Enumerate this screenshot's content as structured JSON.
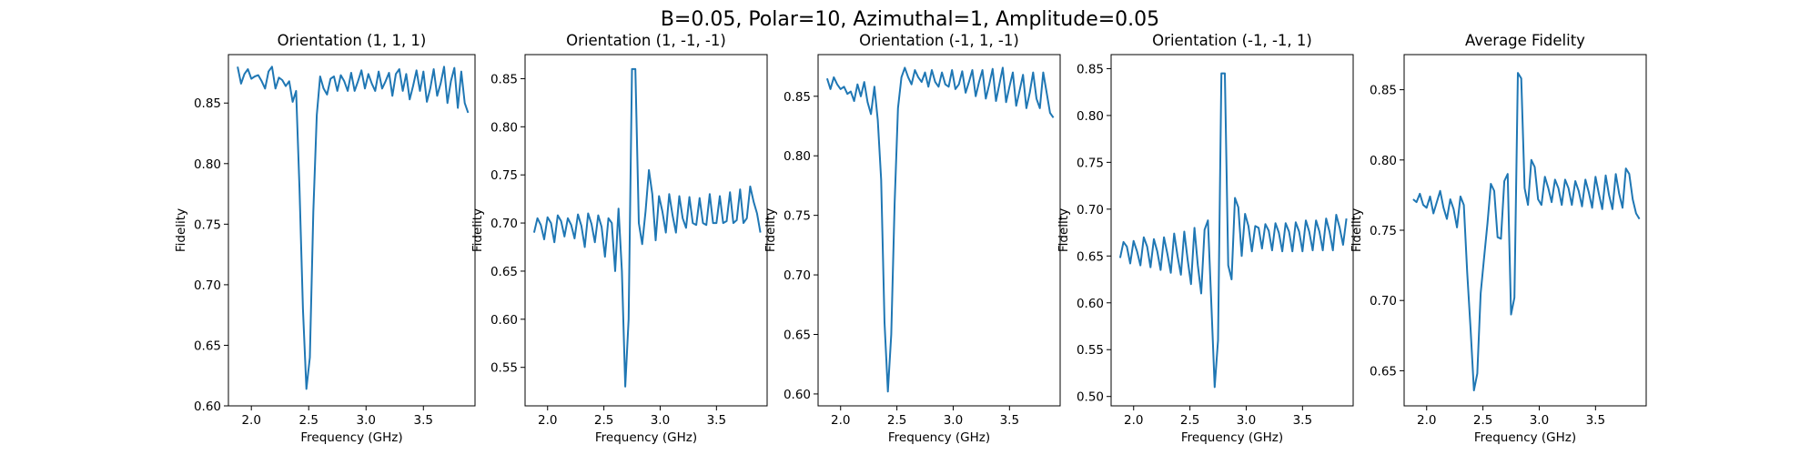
{
  "figure": {
    "suptitle": "B=0.05, Polar=10, Azimuthal=1, Amplitude=0.05",
    "line_color": "#1f77b4"
  },
  "chart_data": [
    {
      "type": "line",
      "title": "Orientation (1, 1, 1)",
      "xlabel": "Frequency (GHz)",
      "ylabel": "Fidelity",
      "xlim": [
        1.8,
        3.95
      ],
      "ylim": [
        0.6,
        0.89
      ],
      "xticks": [
        2.0,
        2.5,
        3.0,
        3.5
      ],
      "xtick_labels": [
        "2.0",
        "2.5",
        "3.0",
        "3.5"
      ],
      "yticks": [
        0.6,
        0.65,
        0.7,
        0.75,
        0.8,
        0.85
      ],
      "ytick_labels": [
        "0.60",
        "0.65",
        "0.70",
        "0.75",
        "0.80",
        "0.85"
      ],
      "series": [
        {
          "x": [
            1.88,
            1.91,
            1.94,
            1.97,
            2.0,
            2.03,
            2.06,
            2.09,
            2.12,
            2.15,
            2.18,
            2.21,
            2.24,
            2.27,
            2.3,
            2.33,
            2.36,
            2.39,
            2.42,
            2.45,
            2.48,
            2.51,
            2.54,
            2.57,
            2.6,
            2.63,
            2.66,
            2.69,
            2.72,
            2.75,
            2.78,
            2.81,
            2.84,
            2.87,
            2.9,
            2.93,
            2.96,
            2.99,
            3.02,
            3.05,
            3.08,
            3.11,
            3.14,
            3.17,
            3.2,
            3.23,
            3.26,
            3.29,
            3.32,
            3.35,
            3.38,
            3.41,
            3.44,
            3.47,
            3.5,
            3.53,
            3.56,
            3.59,
            3.62,
            3.65,
            3.68,
            3.71,
            3.74,
            3.77,
            3.8,
            3.83,
            3.86,
            3.89
          ],
          "y": [
            0.88,
            0.866,
            0.874,
            0.878,
            0.87,
            0.872,
            0.873,
            0.868,
            0.862,
            0.876,
            0.88,
            0.862,
            0.871,
            0.869,
            0.864,
            0.868,
            0.851,
            0.86,
            0.78,
            0.68,
            0.614,
            0.64,
            0.76,
            0.84,
            0.872,
            0.862,
            0.857,
            0.87,
            0.872,
            0.86,
            0.873,
            0.868,
            0.86,
            0.875,
            0.86,
            0.868,
            0.877,
            0.862,
            0.874,
            0.866,
            0.86,
            0.876,
            0.862,
            0.868,
            0.875,
            0.856,
            0.874,
            0.878,
            0.86,
            0.874,
            0.853,
            0.864,
            0.877,
            0.86,
            0.876,
            0.851,
            0.862,
            0.878,
            0.856,
            0.866,
            0.88,
            0.85,
            0.868,
            0.879,
            0.846,
            0.876,
            0.85,
            0.842
          ]
        }
      ]
    },
    {
      "type": "line",
      "title": "Orientation (1, -1, -1)",
      "xlabel": "Frequency (GHz)",
      "ylabel": "Fidelity",
      "xlim": [
        1.8,
        3.95
      ],
      "ylim": [
        0.51,
        0.875
      ],
      "xticks": [
        2.0,
        2.5,
        3.0,
        3.5
      ],
      "xtick_labels": [
        "2.0",
        "2.5",
        "3.0",
        "3.5"
      ],
      "yticks": [
        0.55,
        0.6,
        0.65,
        0.7,
        0.75,
        0.8,
        0.85
      ],
      "ytick_labels": [
        "0.55",
        "0.60",
        "0.65",
        "0.70",
        "0.75",
        "0.80",
        "0.85"
      ],
      "series": [
        {
          "x": [
            1.88,
            1.91,
            1.94,
            1.97,
            2.0,
            2.03,
            2.06,
            2.09,
            2.12,
            2.15,
            2.18,
            2.21,
            2.24,
            2.27,
            2.3,
            2.33,
            2.36,
            2.39,
            2.42,
            2.45,
            2.48,
            2.51,
            2.54,
            2.57,
            2.6,
            2.63,
            2.66,
            2.69,
            2.72,
            2.75,
            2.78,
            2.81,
            2.84,
            2.87,
            2.9,
            2.93,
            2.96,
            2.99,
            3.02,
            3.05,
            3.08,
            3.11,
            3.14,
            3.17,
            3.2,
            3.23,
            3.26,
            3.29,
            3.32,
            3.35,
            3.38,
            3.41,
            3.44,
            3.47,
            3.5,
            3.53,
            3.56,
            3.59,
            3.62,
            3.65,
            3.68,
            3.71,
            3.74,
            3.77,
            3.8,
            3.83,
            3.86,
            3.89
          ],
          "y": [
            0.69,
            0.705,
            0.698,
            0.683,
            0.706,
            0.7,
            0.68,
            0.708,
            0.702,
            0.686,
            0.705,
            0.698,
            0.684,
            0.709,
            0.697,
            0.675,
            0.71,
            0.699,
            0.68,
            0.708,
            0.696,
            0.665,
            0.705,
            0.7,
            0.65,
            0.715,
            0.65,
            0.53,
            0.6,
            0.86,
            0.86,
            0.7,
            0.678,
            0.712,
            0.755,
            0.73,
            0.682,
            0.728,
            0.712,
            0.69,
            0.73,
            0.708,
            0.69,
            0.728,
            0.705,
            0.695,
            0.727,
            0.7,
            0.698,
            0.726,
            0.7,
            0.698,
            0.73,
            0.7,
            0.7,
            0.728,
            0.7,
            0.702,
            0.732,
            0.7,
            0.703,
            0.735,
            0.7,
            0.705,
            0.738,
            0.722,
            0.71,
            0.69
          ]
        }
      ]
    },
    {
      "type": "line",
      "title": "Orientation (-1, 1, -1)",
      "xlabel": "Frequency (GHz)",
      "ylabel": "Fidelity",
      "xlim": [
        1.8,
        3.95
      ],
      "ylim": [
        0.59,
        0.885
      ],
      "xticks": [
        2.0,
        2.5,
        3.0,
        3.5
      ],
      "xtick_labels": [
        "2.0",
        "2.5",
        "3.0",
        "3.5"
      ],
      "yticks": [
        0.6,
        0.65,
        0.7,
        0.75,
        0.8,
        0.85
      ],
      "ytick_labels": [
        "0.60",
        "0.65",
        "0.70",
        "0.75",
        "0.80",
        "0.85"
      ],
      "series": [
        {
          "x": [
            1.88,
            1.91,
            1.94,
            1.97,
            2.0,
            2.03,
            2.06,
            2.09,
            2.12,
            2.15,
            2.18,
            2.21,
            2.24,
            2.27,
            2.3,
            2.33,
            2.36,
            2.39,
            2.42,
            2.45,
            2.48,
            2.51,
            2.54,
            2.57,
            2.6,
            2.63,
            2.66,
            2.69,
            2.72,
            2.75,
            2.78,
            2.81,
            2.84,
            2.87,
            2.9,
            2.93,
            2.96,
            2.99,
            3.02,
            3.05,
            3.08,
            3.11,
            3.14,
            3.17,
            3.2,
            3.23,
            3.26,
            3.29,
            3.32,
            3.35,
            3.38,
            3.41,
            3.44,
            3.47,
            3.5,
            3.53,
            3.56,
            3.59,
            3.62,
            3.65,
            3.68,
            3.71,
            3.74,
            3.77,
            3.8,
            3.83,
            3.86,
            3.89
          ],
          "y": [
            0.865,
            0.856,
            0.866,
            0.86,
            0.856,
            0.858,
            0.852,
            0.854,
            0.846,
            0.86,
            0.85,
            0.862,
            0.845,
            0.835,
            0.858,
            0.83,
            0.78,
            0.66,
            0.602,
            0.65,
            0.76,
            0.84,
            0.866,
            0.874,
            0.866,
            0.86,
            0.872,
            0.866,
            0.862,
            0.87,
            0.858,
            0.872,
            0.862,
            0.858,
            0.87,
            0.86,
            0.858,
            0.872,
            0.856,
            0.86,
            0.871,
            0.853,
            0.862,
            0.872,
            0.85,
            0.862,
            0.872,
            0.848,
            0.86,
            0.873,
            0.846,
            0.86,
            0.874,
            0.845,
            0.858,
            0.87,
            0.842,
            0.855,
            0.868,
            0.84,
            0.853,
            0.87,
            0.848,
            0.84,
            0.87,
            0.853,
            0.836,
            0.832
          ]
        }
      ]
    },
    {
      "type": "line",
      "title": "Orientation (-1, -1, 1)",
      "xlabel": "Frequency (GHz)",
      "ylabel": "Fidelity",
      "xlim": [
        1.8,
        3.95
      ],
      "ylim": [
        0.49,
        0.865
      ],
      "xticks": [
        2.0,
        2.5,
        3.0,
        3.5
      ],
      "xtick_labels": [
        "2.0",
        "2.5",
        "3.0",
        "3.5"
      ],
      "yticks": [
        0.5,
        0.55,
        0.6,
        0.65,
        0.7,
        0.75,
        0.8,
        0.85
      ],
      "ytick_labels": [
        "0.50",
        "0.55",
        "0.60",
        "0.65",
        "0.70",
        "0.75",
        "0.80",
        "0.85"
      ],
      "series": [
        {
          "x": [
            1.88,
            1.91,
            1.94,
            1.97,
            2.0,
            2.03,
            2.06,
            2.09,
            2.12,
            2.15,
            2.18,
            2.21,
            2.24,
            2.27,
            2.3,
            2.33,
            2.36,
            2.39,
            2.42,
            2.45,
            2.48,
            2.51,
            2.54,
            2.57,
            2.6,
            2.63,
            2.66,
            2.69,
            2.72,
            2.75,
            2.78,
            2.81,
            2.84,
            2.87,
            2.9,
            2.93,
            2.96,
            2.99,
            3.02,
            3.05,
            3.08,
            3.11,
            3.14,
            3.17,
            3.2,
            3.23,
            3.26,
            3.29,
            3.32,
            3.35,
            3.38,
            3.41,
            3.44,
            3.47,
            3.5,
            3.53,
            3.56,
            3.59,
            3.62,
            3.65,
            3.68,
            3.71,
            3.74,
            3.77,
            3.8,
            3.83,
            3.86,
            3.89
          ],
          "y": [
            0.648,
            0.665,
            0.66,
            0.642,
            0.666,
            0.655,
            0.64,
            0.67,
            0.66,
            0.638,
            0.668,
            0.655,
            0.635,
            0.67,
            0.652,
            0.632,
            0.674,
            0.65,
            0.63,
            0.676,
            0.646,
            0.62,
            0.68,
            0.64,
            0.61,
            0.678,
            0.688,
            0.6,
            0.51,
            0.56,
            0.845,
            0.845,
            0.64,
            0.625,
            0.712,
            0.702,
            0.65,
            0.695,
            0.682,
            0.655,
            0.682,
            0.68,
            0.658,
            0.684,
            0.677,
            0.656,
            0.685,
            0.675,
            0.655,
            0.685,
            0.676,
            0.655,
            0.686,
            0.676,
            0.655,
            0.688,
            0.676,
            0.656,
            0.688,
            0.676,
            0.656,
            0.69,
            0.676,
            0.656,
            0.694,
            0.68,
            0.662,
            0.69
          ]
        }
      ]
    },
    {
      "type": "line",
      "title": "Average Fidelity",
      "xlabel": "Frequency (GHz)",
      "ylabel": "Fidelity",
      "xlim": [
        1.8,
        3.95
      ],
      "ylim": [
        0.625,
        0.875
      ],
      "xticks": [
        2.0,
        2.5,
        3.0,
        3.5
      ],
      "xtick_labels": [
        "2.0",
        "2.5",
        "3.0",
        "3.5"
      ],
      "yticks": [
        0.65,
        0.7,
        0.75,
        0.8,
        0.85
      ],
      "ytick_labels": [
        "0.65",
        "0.70",
        "0.75",
        "0.80",
        "0.85"
      ],
      "series": [
        {
          "x": [
            1.88,
            1.91,
            1.94,
            1.97,
            2.0,
            2.03,
            2.06,
            2.09,
            2.12,
            2.15,
            2.18,
            2.21,
            2.24,
            2.27,
            2.3,
            2.33,
            2.36,
            2.39,
            2.42,
            2.45,
            2.48,
            2.51,
            2.54,
            2.57,
            2.6,
            2.63,
            2.66,
            2.69,
            2.72,
            2.75,
            2.78,
            2.81,
            2.84,
            2.87,
            2.9,
            2.93,
            2.96,
            2.99,
            3.02,
            3.05,
            3.08,
            3.11,
            3.14,
            3.17,
            3.2,
            3.23,
            3.26,
            3.29,
            3.32,
            3.35,
            3.38,
            3.41,
            3.44,
            3.47,
            3.5,
            3.53,
            3.56,
            3.59,
            3.62,
            3.65,
            3.68,
            3.71,
            3.74,
            3.77,
            3.8,
            3.83,
            3.86,
            3.89
          ],
          "y": [
            0.772,
            0.77,
            0.776,
            0.768,
            0.766,
            0.774,
            0.762,
            0.77,
            0.778,
            0.766,
            0.758,
            0.772,
            0.765,
            0.752,
            0.774,
            0.768,
            0.72,
            0.68,
            0.636,
            0.648,
            0.705,
            0.73,
            0.755,
            0.783,
            0.778,
            0.745,
            0.744,
            0.785,
            0.79,
            0.69,
            0.702,
            0.862,
            0.858,
            0.78,
            0.768,
            0.8,
            0.795,
            0.772,
            0.768,
            0.788,
            0.78,
            0.77,
            0.786,
            0.78,
            0.768,
            0.786,
            0.78,
            0.768,
            0.785,
            0.778,
            0.767,
            0.786,
            0.777,
            0.766,
            0.788,
            0.776,
            0.765,
            0.789,
            0.775,
            0.765,
            0.79,
            0.776,
            0.766,
            0.794,
            0.79,
            0.772,
            0.762,
            0.758
          ]
        }
      ]
    }
  ]
}
